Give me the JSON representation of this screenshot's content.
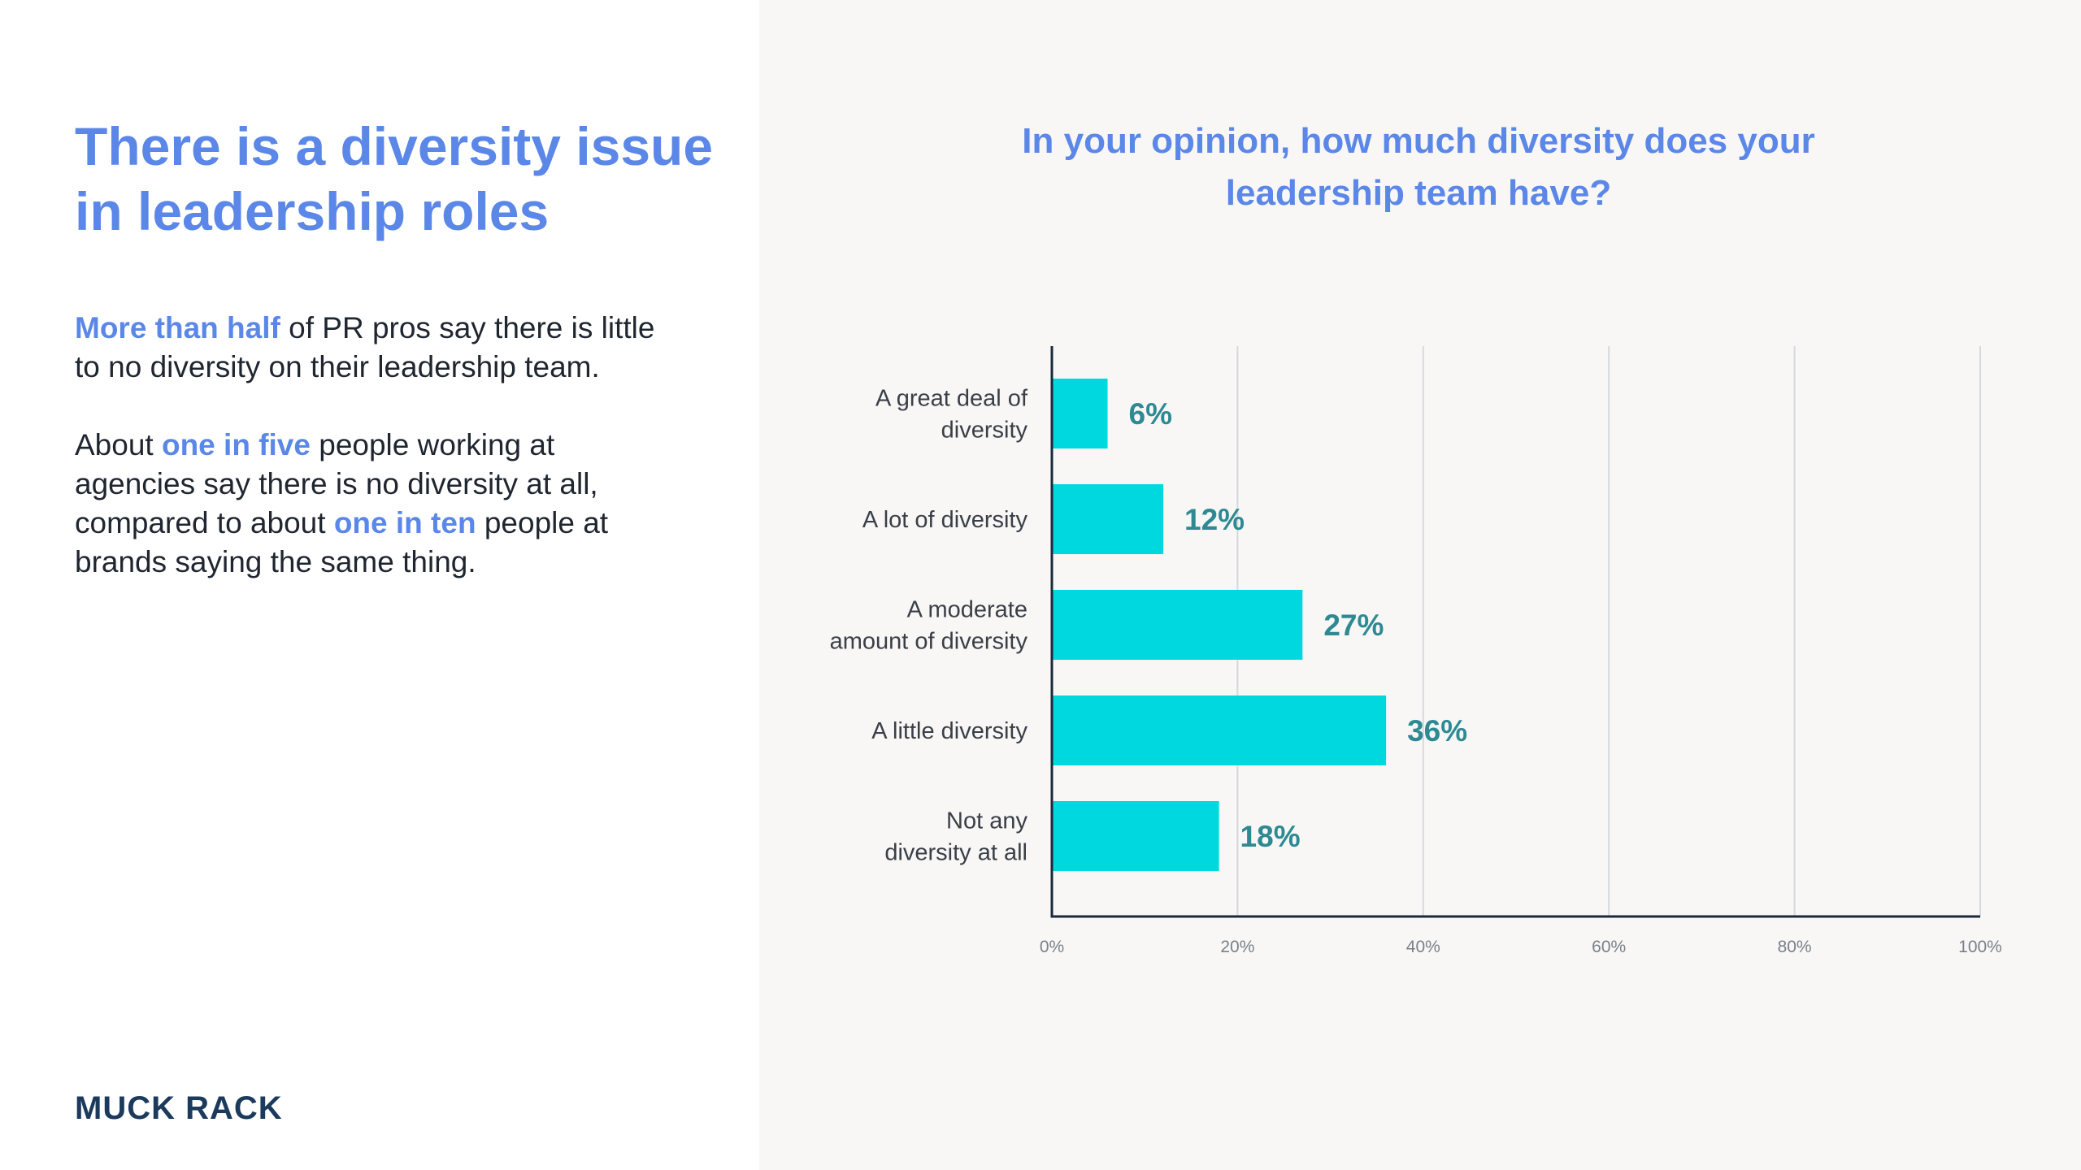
{
  "left": {
    "headline_line1": "There is a diversity issue",
    "headline_line2": "in leadership roles",
    "para1": {
      "hl1": "More than half",
      "t1": " of PR pros say there is little to no diversity on their leadership team."
    },
    "para2": {
      "t1": "About ",
      "hl1": "one in five",
      "t2": " people working at agencies say there is no diversity at all, compared to about ",
      "hl2": "one in ten",
      "t3": " people at brands saying the same thing."
    },
    "logo": "MUCK RACK"
  },
  "colors": {
    "accent": "#5b87e8",
    "bar": "#00d8e0",
    "value_label": "#2e8a92",
    "axis": "#1b2a3a",
    "grid": "#d5d9de",
    "right_bg": "#f8f7f6",
    "logo": "#1b3a5c"
  },
  "chart_data": {
    "type": "bar",
    "orientation": "horizontal",
    "title_line1": "In your opinion, how much diversity does your",
    "title_line2": "leadership team have?",
    "categories": [
      [
        "A great deal of",
        "diversity"
      ],
      [
        "A lot of diversity"
      ],
      [
        "A moderate",
        "amount of diversity"
      ],
      [
        "A little diversity"
      ],
      [
        "Not any",
        "diversity at all"
      ]
    ],
    "values": [
      6,
      12,
      27,
      36,
      18
    ],
    "value_labels": [
      "6%",
      "12%",
      "27%",
      "36%",
      "18%"
    ],
    "xlim": [
      0,
      100
    ],
    "xticks": [
      0,
      20,
      40,
      60,
      80,
      100
    ],
    "xtick_labels": [
      "0%",
      "20%",
      "40%",
      "60%",
      "80%",
      "100%"
    ],
    "grid": true
  }
}
